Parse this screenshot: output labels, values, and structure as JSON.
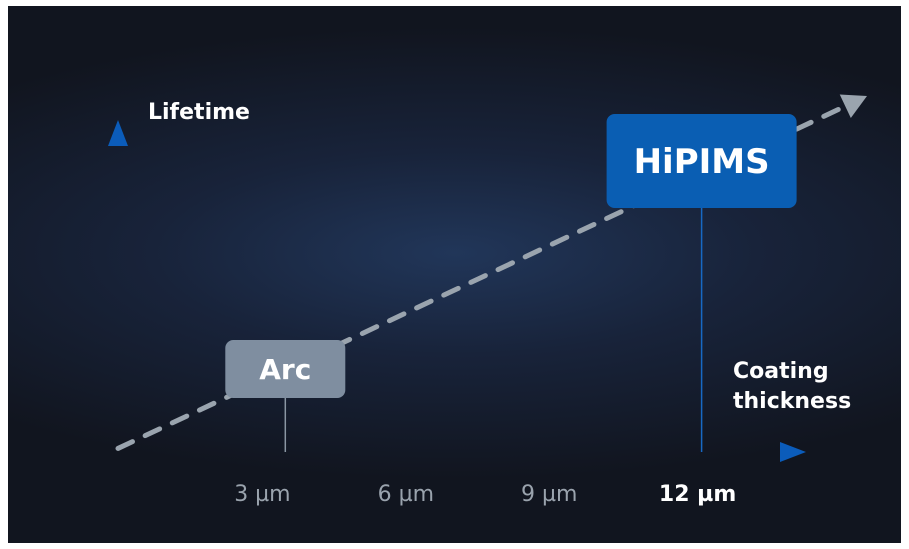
{
  "chart_data": {
    "type": "line",
    "xlabel": [
      "Coating",
      "thickness"
    ],
    "ylabel": "Lifetime",
    "x_ticks": [
      {
        "value": 3,
        "label": "3 µm",
        "bold": false
      },
      {
        "value": 6,
        "label": "6 µm",
        "bold": false
      },
      {
        "value": 9,
        "label": "9 µm",
        "bold": false
      },
      {
        "value": 12,
        "label": "12 µm",
        "bold": true
      }
    ],
    "xlim": [
      0,
      15
    ],
    "grid": false,
    "series": [
      {
        "style": "dashed-trend",
        "x": [
          0,
          15
        ],
        "y_relative": [
          0.01,
          1.0
        ]
      }
    ],
    "annotations": [
      {
        "label": "Arc",
        "x": 3.5,
        "color": "#7f8ea0"
      },
      {
        "label": "HiPIMS",
        "x": 12,
        "color": "#0a5eb3"
      }
    ],
    "colors": {
      "axis_start": "#8dc63f",
      "axis_mid": "#1a86a8",
      "axis_end": "#0b5cba",
      "trend": "#9aa4ae",
      "tick_label": "#9aa3ad",
      "text": "#ffffff"
    }
  }
}
